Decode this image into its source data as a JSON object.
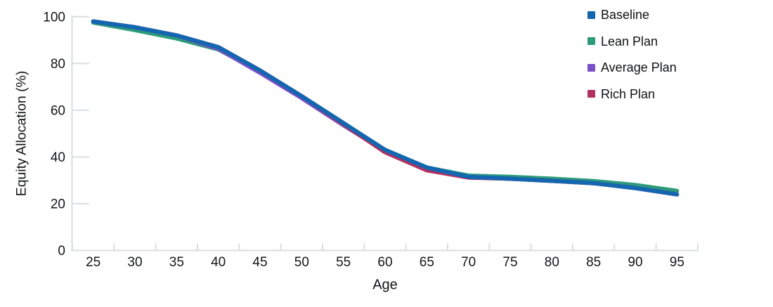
{
  "chart_data": {
    "type": "line",
    "title": "",
    "xlabel": "Age",
    "ylabel": "Equity Allocation (%)",
    "categories": [
      25,
      30,
      35,
      40,
      45,
      50,
      55,
      60,
      65,
      70,
      75,
      80,
      85,
      90,
      95
    ],
    "y_ticks": [
      0,
      20,
      40,
      60,
      80,
      100
    ],
    "ylim": [
      0,
      100
    ],
    "grid": false,
    "axis_color": "#d9dde2",
    "tick_label_color": "#151618",
    "line_width": 6,
    "legend_position": "top-right",
    "legend_marker": "square",
    "series": [
      {
        "name": "Baseline",
        "color": "#1367b1",
        "z": 4,
        "values": [
          98,
          95.5,
          92,
          87,
          77,
          66,
          54.5,
          43,
          35.5,
          31.5,
          30.7,
          29.8,
          28.8,
          26.7,
          24
        ]
      },
      {
        "name": "Lean Plan",
        "color": "#2b9c7a",
        "z": 1,
        "values": [
          97.5,
          94.3,
          90.7,
          86,
          76.5,
          66,
          54.5,
          43,
          35.5,
          32,
          31.5,
          30.7,
          29.7,
          28,
          25.5
        ]
      },
      {
        "name": "Average Plan",
        "color": "#7a50c7",
        "z": 2,
        "values": [
          98,
          95.5,
          92,
          86.3,
          76,
          65.2,
          53.6,
          42.5,
          35.3,
          31.5,
          30.7,
          29.8,
          28.8,
          26.7,
          24
        ]
      },
      {
        "name": "Rich Plan",
        "color": "#b23160",
        "z": 3,
        "values": [
          98,
          95.5,
          92,
          87,
          77,
          66,
          54,
          42,
          34.3,
          31.2,
          30.7,
          29.8,
          28.8,
          26.7,
          24
        ]
      }
    ]
  }
}
